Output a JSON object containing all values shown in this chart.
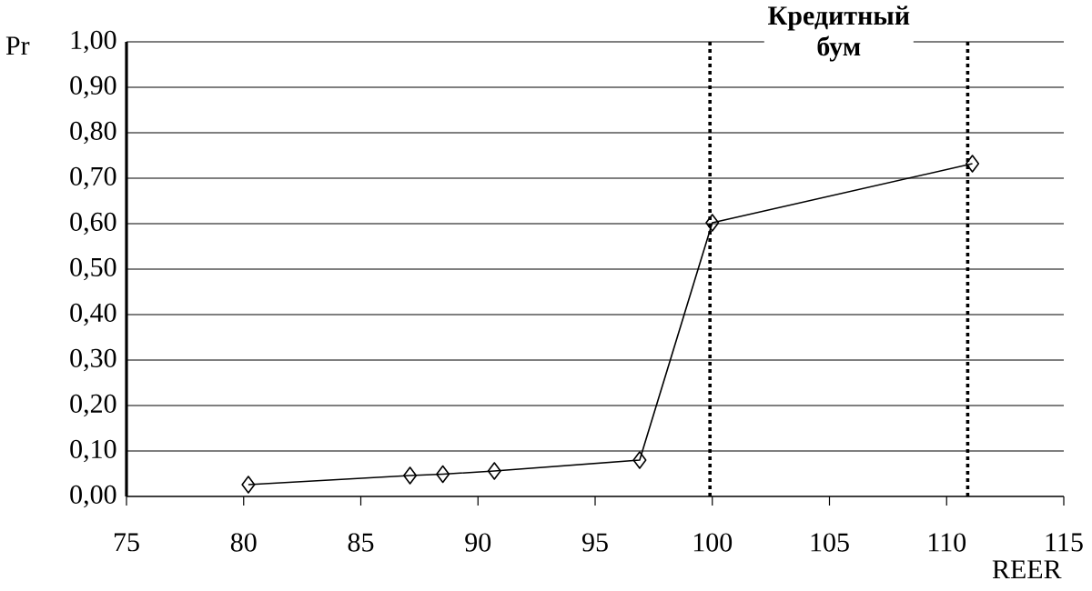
{
  "chart_data": {
    "type": "line",
    "xlabel": "REER",
    "ylabel": "Pr",
    "x": [
      80.2,
      87.1,
      88.5,
      90.7,
      96.9,
      100.0,
      111.1
    ],
    "series": [
      {
        "color": "#000000",
        "values": [
          0.026,
          0.046,
          0.049,
          0.056,
          0.08,
          0.602,
          0.732
        ]
      }
    ],
    "marker": "diamond",
    "line_style": "solid",
    "grid": "y",
    "xlim": [
      75,
      115
    ],
    "xticks": [
      75,
      80,
      85,
      90,
      95,
      100,
      105,
      110,
      115
    ],
    "ylim": [
      0,
      1
    ],
    "yticks": [
      {
        "value": 0,
        "label": "0,00"
      },
      {
        "value": 0.1,
        "label": "0,10"
      },
      {
        "value": 0.2,
        "label": "0,20"
      },
      {
        "value": 0.3,
        "label": "0,30"
      },
      {
        "value": 0.4,
        "label": "0,40"
      },
      {
        "value": 0.5,
        "label": "0,50"
      },
      {
        "value": 0.6,
        "label": "0,60"
      },
      {
        "value": 0.7,
        "label": "0,70"
      },
      {
        "value": 0.8,
        "label": "0,80"
      },
      {
        "value": 0.9,
        "label": "0,90"
      },
      {
        "value": 1,
        "label": "1,00"
      }
    ],
    "ref_lines": [
      {
        "axis": "x",
        "value": 99.9,
        "label": null,
        "color": "#000000",
        "line_style": "dotted"
      },
      {
        "axis": "x",
        "value": 110.9,
        "label": null,
        "color": "#000000",
        "line_style": "dotted"
      }
    ],
    "annotations": [
      "**Кредитный бум**"
    ]
  }
}
